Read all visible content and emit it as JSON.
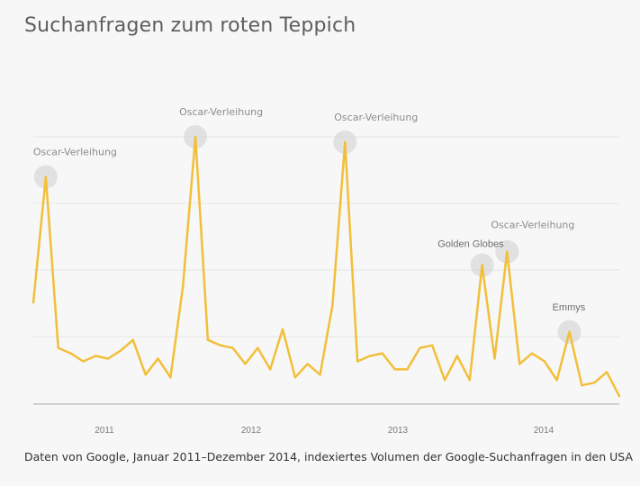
{
  "chart_data": {
    "type": "line",
    "title": "Suchanfragen zum roten Teppich",
    "source": "Daten von Google, Januar 2011–Dezember 2014, indexiertes Volumen der Google-Suchanfragen in den USA",
    "xlabel": "",
    "ylabel": "",
    "grid": true,
    "legend": "none",
    "x_tick_labels": [
      "2011",
      "2012",
      "2013",
      "2014"
    ],
    "series": [
      {
        "color": "#f2bf3a",
        "values": [
          38,
          85,
          21,
          19,
          16,
          18,
          17,
          20,
          24,
          11,
          17,
          10,
          44,
          100,
          24,
          22,
          21,
          15,
          21,
          13,
          28,
          10,
          15,
          11,
          37,
          98,
          16,
          18,
          19,
          13,
          13,
          21,
          22,
          9,
          18,
          9,
          52,
          17,
          57,
          15,
          19,
          16,
          9,
          27,
          7,
          8,
          12,
          3
        ]
      }
    ],
    "ylim": [
      0,
      110
    ],
    "annotations": [
      {
        "label": "Oscar-Verleihung",
        "index": 1
      },
      {
        "label": "Oscar-Verleihung",
        "index": 13
      },
      {
        "label": "Oscar-Verleihung",
        "index": 25
      },
      {
        "label": "Golden Globes",
        "index": 36
      },
      {
        "label": "Oscar-Verleihung",
        "index": 38
      },
      {
        "label": "Emmys",
        "index": 43
      }
    ]
  }
}
